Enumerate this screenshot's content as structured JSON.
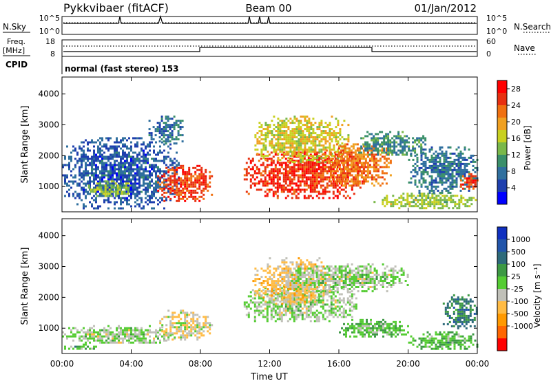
{
  "header": {
    "station": "Pykkvibaer (fitACF)",
    "beam": "Beam 00",
    "date": "01/Jan/2012"
  },
  "summary": {
    "nsky": {
      "label": "N.Sky",
      "ticks": [
        "10^5",
        "10^0"
      ]
    },
    "nsearch": {
      "label": "N.Search",
      "ticks": [
        "10^5",
        "10^0"
      ]
    },
    "freq": {
      "label_line1": "Freq.",
      "label_line2": "[MHz]",
      "ticks": [
        "18",
        "8"
      ]
    },
    "nave": {
      "label": "Nave",
      "ticks": [
        "60",
        "0"
      ]
    },
    "cpid": {
      "label": "CPID",
      "text": "normal (fast stereo) 153"
    }
  },
  "colors": {
    "power_scale": [
      "#0000ff",
      "#1e3fae",
      "#2f6f9e",
      "#3a8f6a",
      "#7ab84a",
      "#c8d020",
      "#f0a020",
      "#f07010",
      "#e83010",
      "#ff0000"
    ],
    "velocity_scale": [
      "#ff0000",
      "#ff6600",
      "#ff9900",
      "#ffbb44",
      "#c0c0b8",
      "#55cc33",
      "#3d9944",
      "#2d6a7a",
      "#2255aa",
      "#1030c0"
    ],
    "ground_scatter": "#c0c0b8"
  },
  "chart_data": [
    {
      "type": "heatmap",
      "name": "power",
      "xlabel": "",
      "ylabel": "Slant Range [km]",
      "xlim": [
        0,
        24
      ],
      "ylim": [
        180,
        4550
      ],
      "y_ticks": [
        "1000",
        "2000",
        "3000",
        "4000"
      ],
      "colorbar": {
        "label": "Power [dB]",
        "ticks": [
          "28",
          "24",
          "20",
          "16",
          "12",
          "8",
          "4"
        ],
        "range": [
          0,
          30
        ]
      },
      "regions": [
        {
          "x": [
            0,
            6.8
          ],
          "y": [
            300,
            2600
          ],
          "value": 6
        },
        {
          "x": [
            1.5,
            4
          ],
          "y": [
            700,
            1200
          ],
          "value": 14
        },
        {
          "x": [
            5.5,
            8.7
          ],
          "y": [
            500,
            1700
          ],
          "value": 25
        },
        {
          "x": [
            5,
            7
          ],
          "y": [
            2400,
            3300
          ],
          "value": 8
        },
        {
          "x": [
            10.5,
            17.5
          ],
          "y": [
            600,
            2200
          ],
          "value": 26
        },
        {
          "x": [
            11,
            16.5
          ],
          "y": [
            1800,
            3300
          ],
          "value": 17
        },
        {
          "x": [
            15,
            19
          ],
          "y": [
            1000,
            2400
          ],
          "value": 22
        },
        {
          "x": [
            17,
            21
          ],
          "y": [
            2000,
            2800
          ],
          "value": 10
        },
        {
          "x": [
            18,
            24
          ],
          "y": [
            300,
            800
          ],
          "value": 15
        },
        {
          "x": [
            20,
            24
          ],
          "y": [
            800,
            2300
          ],
          "value": 8
        },
        {
          "x": [
            23,
            24
          ],
          "y": [
            900,
            1500
          ],
          "value": 25
        }
      ]
    },
    {
      "type": "heatmap",
      "name": "velocity",
      "xlabel": "Time UT",
      "ylabel": "Slant Range [km]",
      "xlim": [
        0,
        24
      ],
      "ylim": [
        180,
        4550
      ],
      "x_ticks": [
        "00:00",
        "04:00",
        "08:00",
        "12:00",
        "16:00",
        "20:00",
        "00:00"
      ],
      "y_ticks": [
        "1000",
        "2000",
        "3000",
        "4000"
      ],
      "colorbar": {
        "label": "Velocity [m s⁻¹]",
        "ticks": [
          "1000",
          "500",
          "100",
          "25",
          "-25",
          "-100",
          "-500",
          "-1000"
        ],
        "range": [
          -1200,
          1200
        ]
      },
      "regions": [
        {
          "x": [
            0,
            6.5
          ],
          "y": [
            500,
            1100
          ],
          "value": 0
        },
        {
          "x": [
            0,
            2
          ],
          "y": [
            300,
            500
          ],
          "value": 200
        },
        {
          "x": [
            5.5,
            8.7
          ],
          "y": [
            600,
            1600
          ],
          "value": -200
        },
        {
          "x": [
            10.5,
            17
          ],
          "y": [
            1200,
            2400
          ],
          "value": 0
        },
        {
          "x": [
            11,
            15.5
          ],
          "y": [
            1800,
            3300
          ],
          "value": -300
        },
        {
          "x": [
            13,
            20
          ],
          "y": [
            2200,
            3100
          ],
          "value": 0
        },
        {
          "x": [
            16,
            20
          ],
          "y": [
            700,
            1300
          ],
          "value": 200
        },
        {
          "x": [
            20,
            24
          ],
          "y": [
            300,
            900
          ],
          "value": 200
        },
        {
          "x": [
            22,
            24
          ],
          "y": [
            1000,
            2100
          ],
          "value": 500
        }
      ]
    }
  ]
}
